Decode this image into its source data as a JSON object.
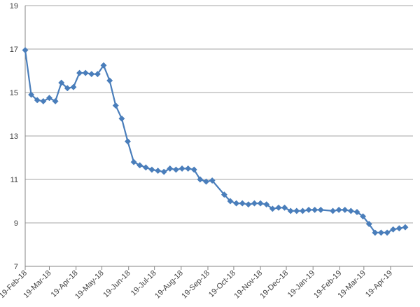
{
  "chart_data": {
    "type": "line",
    "title": "",
    "xlabel": "",
    "ylabel": "",
    "ylim": [
      7,
      19
    ],
    "yticks": [
      7,
      9,
      11,
      13,
      15,
      17,
      19
    ],
    "xlim": [
      "2018-02-19",
      "2019-05-15"
    ],
    "xticks": [
      {
        "label": "19-Feb-18",
        "date": "2018-02-19"
      },
      {
        "label": "19-Mar-18",
        "date": "2018-03-19"
      },
      {
        "label": "19-Apr-18",
        "date": "2018-04-19"
      },
      {
        "label": "19-May-18",
        "date": "2018-05-19"
      },
      {
        "label": "19-Jun-18",
        "date": "2018-06-19"
      },
      {
        "label": "19-Jul-18",
        "date": "2018-07-19"
      },
      {
        "label": "19-Aug-18",
        "date": "2018-08-19"
      },
      {
        "label": "19-Sep-18",
        "date": "2018-09-19"
      },
      {
        "label": "19-Oct-18",
        "date": "2018-10-19"
      },
      {
        "label": "19-Nov-18",
        "date": "2018-11-19"
      },
      {
        "label": "19-Dec-18",
        "date": "2018-12-19"
      },
      {
        "label": "19-Jan-19",
        "date": "2019-01-19"
      },
      {
        "label": "19-Feb-19",
        "date": "2019-02-19"
      },
      {
        "label": "19-Mar-19",
        "date": "2019-03-19"
      },
      {
        "label": "19-Apr-19",
        "date": "2019-04-19"
      }
    ],
    "grid": {
      "horizontal": true,
      "vertical": false
    },
    "legend": "none",
    "colors": {
      "series": "#4a7ebb",
      "grid": "#a6a6a6",
      "axis": "#868686",
      "text": "#404040"
    },
    "series": [
      {
        "marker": "diamond",
        "points": [
          [
            "2018-02-19",
            16.95
          ],
          [
            "2018-02-26",
            14.9
          ],
          [
            "2018-03-05",
            14.65
          ],
          [
            "2018-03-12",
            14.6
          ],
          [
            "2018-03-19",
            14.75
          ],
          [
            "2018-03-26",
            14.6
          ],
          [
            "2018-04-02",
            15.45
          ],
          [
            "2018-04-09",
            15.2
          ],
          [
            "2018-04-16",
            15.25
          ],
          [
            "2018-04-23",
            15.9
          ],
          [
            "2018-04-30",
            15.9
          ],
          [
            "2018-05-07",
            15.85
          ],
          [
            "2018-05-14",
            15.85
          ],
          [
            "2018-05-21",
            16.25
          ],
          [
            "2018-05-28",
            15.55
          ],
          [
            "2018-06-04",
            14.4
          ],
          [
            "2018-06-11",
            13.8
          ],
          [
            "2018-06-18",
            12.75
          ],
          [
            "2018-06-25",
            11.8
          ],
          [
            "2018-07-02",
            11.65
          ],
          [
            "2018-07-09",
            11.55
          ],
          [
            "2018-07-16",
            11.45
          ],
          [
            "2018-07-23",
            11.4
          ],
          [
            "2018-07-30",
            11.35
          ],
          [
            "2018-08-06",
            11.5
          ],
          [
            "2018-08-13",
            11.45
          ],
          [
            "2018-08-20",
            11.5
          ],
          [
            "2018-08-27",
            11.5
          ],
          [
            "2018-09-03",
            11.45
          ],
          [
            "2018-09-10",
            11.0
          ],
          [
            "2018-09-17",
            10.9
          ],
          [
            "2018-09-24",
            10.95
          ],
          [
            "2018-10-08",
            10.3
          ],
          [
            "2018-10-15",
            10.0
          ],
          [
            "2018-10-22",
            9.9
          ],
          [
            "2018-10-29",
            9.9
          ],
          [
            "2018-11-05",
            9.85
          ],
          [
            "2018-11-12",
            9.9
          ],
          [
            "2018-11-19",
            9.9
          ],
          [
            "2018-11-26",
            9.85
          ],
          [
            "2018-12-03",
            9.65
          ],
          [
            "2018-12-10",
            9.7
          ],
          [
            "2018-12-17",
            9.7
          ],
          [
            "2018-12-24",
            9.55
          ],
          [
            "2018-12-31",
            9.55
          ],
          [
            "2019-01-07",
            9.55
          ],
          [
            "2019-01-14",
            9.6
          ],
          [
            "2019-01-21",
            9.6
          ],
          [
            "2019-01-28",
            9.6
          ],
          [
            "2019-02-11",
            9.55
          ],
          [
            "2019-02-18",
            9.6
          ],
          [
            "2019-02-25",
            9.6
          ],
          [
            "2019-03-04",
            9.55
          ],
          [
            "2019-03-11",
            9.5
          ],
          [
            "2019-03-18",
            9.3
          ],
          [
            "2019-03-25",
            8.95
          ],
          [
            "2019-04-01",
            8.55
          ],
          [
            "2019-04-08",
            8.55
          ],
          [
            "2019-04-15",
            8.55
          ],
          [
            "2019-04-22",
            8.7
          ],
          [
            "2019-04-29",
            8.75
          ],
          [
            "2019-05-06",
            8.8
          ]
        ]
      }
    ]
  }
}
